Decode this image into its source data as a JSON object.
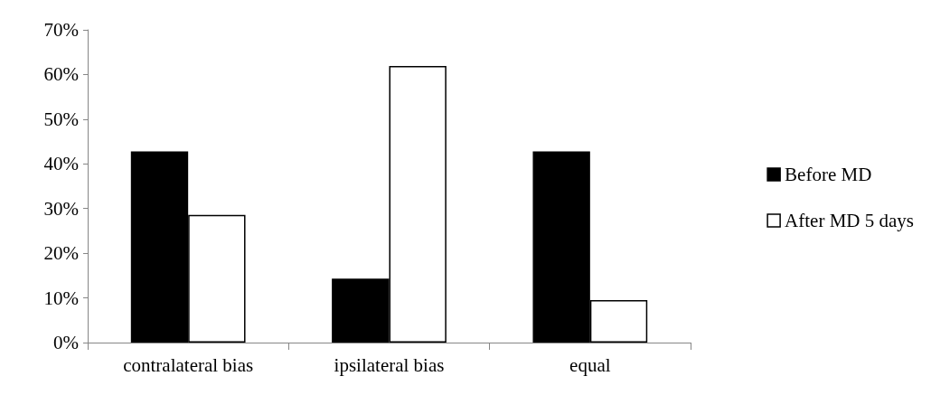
{
  "chart_data": {
    "type": "bar",
    "categories": [
      "contralateral bias",
      "ipsilateral bias",
      "equal"
    ],
    "series": [
      {
        "name": "Before MD",
        "color": "#000000",
        "values": [
          42.8,
          14.3,
          42.8
        ]
      },
      {
        "name": "After MD 5 days",
        "color": "#ffffff",
        "values": [
          28.6,
          61.9,
          9.5
        ]
      }
    ],
    "ylim": [
      0,
      70
    ],
    "yticks": [
      {
        "value": 0,
        "label": "0%"
      },
      {
        "value": 10,
        "label": "10%"
      },
      {
        "value": 20,
        "label": "20%"
      },
      {
        "value": 30,
        "label": "30%"
      },
      {
        "value": 40,
        "label": "40%"
      },
      {
        "value": 50,
        "label": "50%"
      },
      {
        "value": 60,
        "label": "60%"
      },
      {
        "value": 70,
        "label": "70%"
      }
    ],
    "grid": false,
    "legend": "right"
  }
}
